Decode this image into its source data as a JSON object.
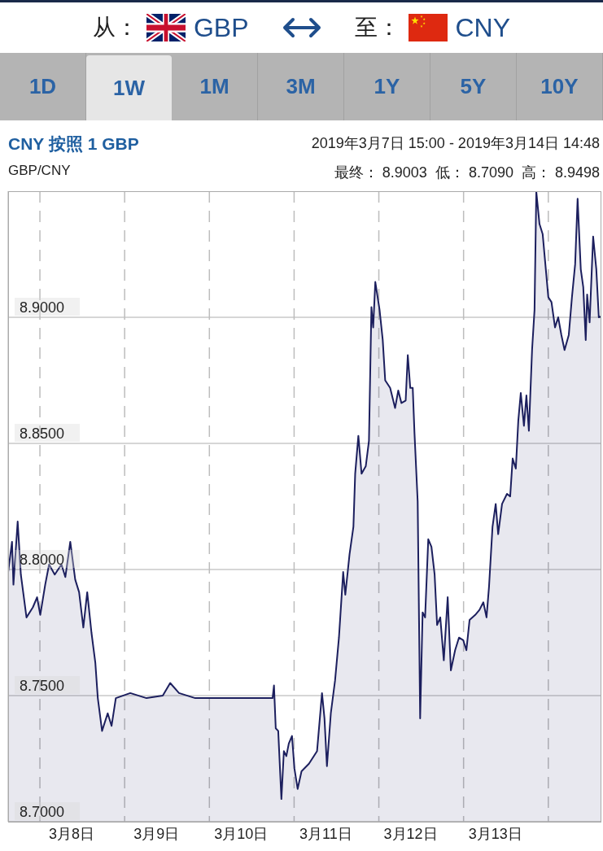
{
  "chart_data": {
    "type": "area",
    "title": "CNY 按照 1 GBP",
    "subtitle": "GBP/CNY",
    "annotations": [
      "从：",
      "GBP",
      "至：",
      "CNY",
      "1D",
      "1W",
      "1M",
      "3M",
      "1Y",
      "5Y",
      "10Y",
      "2019年3月7日 15:00 - 2019年3月14日 14:48",
      "最终： 8.9003  低： 8.7090  高： 8.9498"
    ],
    "x": [
      "2019-03-07T15:00",
      "2019-03-07T16:06",
      "2019-03-07T16:30",
      "2019-03-07T17:42",
      "2019-03-07T18:36",
      "2019-03-07T20:12",
      "2019-03-07T22:00",
      "2019-03-07T23:12",
      "2019-03-08T00:06",
      "2019-03-08T01:30",
      "2019-03-08T02:36",
      "2019-03-08T04:12",
      "2019-03-08T06:06",
      "2019-03-08T07:12",
      "2019-03-08T08:36",
      "2019-03-08T10:00",
      "2019-03-08T11:06",
      "2019-03-08T12:18",
      "2019-03-08T13:24",
      "2019-03-08T14:36",
      "2019-03-08T15:42",
      "2019-03-08T16:24",
      "2019-03-08T17:36",
      "2019-03-08T19:12",
      "2019-03-08T20:18",
      "2019-03-08T21:30",
      "2019-03-09T01:36",
      "2019-03-09T06:12",
      "2019-03-09T10:48",
      "2019-03-09T12:54",
      "2019-03-09T15:24",
      "2019-03-09T20:00",
      "2019-03-10T17:54",
      "2019-03-10T18:18",
      "2019-03-10T18:48",
      "2019-03-10T19:30",
      "2019-03-10T20:24",
      "2019-03-10T21:06",
      "2019-03-10T21:48",
      "2019-03-10T22:30",
      "2019-03-10T23:24",
      "2019-03-11T00:06",
      "2019-03-11T01:00",
      "2019-03-11T02:06",
      "2019-03-11T04:12",
      "2019-03-11T06:30",
      "2019-03-11T07:54",
      "2019-03-11T08:36",
      "2019-03-11T09:18",
      "2019-03-11T10:24",
      "2019-03-11T11:36",
      "2019-03-11T12:42",
      "2019-03-11T13:54",
      "2019-03-11T14:30",
      "2019-03-11T15:42",
      "2019-03-11T16:48",
      "2019-03-11T17:18",
      "2019-03-11T18:12",
      "2019-03-11T19:06",
      "2019-03-11T20:18",
      "2019-03-11T21:12",
      "2019-03-11T21:54",
      "2019-03-11T22:24",
      "2019-03-11T23:00",
      "2019-03-12T00:12",
      "2019-03-12T01:06",
      "2019-03-12T01:48",
      "2019-03-12T03:12",
      "2019-03-12T04:36",
      "2019-03-12T05:30",
      "2019-03-12T06:24",
      "2019-03-12T07:36",
      "2019-03-12T08:12",
      "2019-03-12T08:54",
      "2019-03-12T09:36",
      "2019-03-12T10:06",
      "2019-03-12T11:00",
      "2019-03-12T11:42",
      "2019-03-12T12:24",
      "2019-03-12T13:06",
      "2019-03-12T14:00",
      "2019-03-12T14:54",
      "2019-03-12T15:48",
      "2019-03-12T16:30",
      "2019-03-12T17:24",
      "2019-03-12T18:24",
      "2019-03-12T19:30",
      "2019-03-12T20:24",
      "2019-03-12T21:36",
      "2019-03-12T22:42",
      "2019-03-12T23:54",
      "2019-03-13T00:48",
      "2019-03-13T01:42",
      "2019-03-13T03:18",
      "2019-03-13T04:30",
      "2019-03-13T05:36",
      "2019-03-13T06:30",
      "2019-03-13T07:12",
      "2019-03-13T08:12",
      "2019-03-13T09:06",
      "2019-03-13T09:48",
      "2019-03-13T10:54",
      "2019-03-13T12:18",
      "2019-03-13T13:12",
      "2019-03-13T13:54",
      "2019-03-13T14:48",
      "2019-03-13T15:30",
      "2019-03-13T16:12",
      "2019-03-13T17:06",
      "2019-03-13T17:48",
      "2019-03-13T18:30",
      "2019-03-13T19:24",
      "2019-03-13T20:06",
      "2019-03-13T20:36",
      "2019-03-13T21:30",
      "2019-03-13T22:24",
      "2019-03-13T23:18",
      "2019-03-14T00:00",
      "2019-03-14T00:54",
      "2019-03-14T01:54",
      "2019-03-14T02:48",
      "2019-03-14T03:42",
      "2019-03-14T04:36",
      "2019-03-14T05:48",
      "2019-03-14T06:42",
      "2019-03-14T07:36",
      "2019-03-14T08:18",
      "2019-03-14T09:12",
      "2019-03-14T09:54",
      "2019-03-14T10:36",
      "2019-03-14T11:00",
      "2019-03-14T11:42",
      "2019-03-14T12:42",
      "2019-03-14T13:36",
      "2019-03-14T14:18",
      "2019-03-14T14:48"
    ],
    "values": [
      8.799,
      8.811,
      8.794,
      8.819,
      8.798,
      8.781,
      8.785,
      8.789,
      8.782,
      8.794,
      8.802,
      8.798,
      8.802,
      8.797,
      8.811,
      8.796,
      8.791,
      8.777,
      8.791,
      8.775,
      8.763,
      8.749,
      8.736,
      8.743,
      8.738,
      8.749,
      8.751,
      8.749,
      8.75,
      8.755,
      8.751,
      8.749,
      8.749,
      8.754,
      8.737,
      8.736,
      8.709,
      8.728,
      8.726,
      8.731,
      8.734,
      8.721,
      8.713,
      8.72,
      8.723,
      8.728,
      8.751,
      8.741,
      8.722,
      8.743,
      8.756,
      8.773,
      8.799,
      8.79,
      8.806,
      8.817,
      8.838,
      8.853,
      8.838,
      8.841,
      8.851,
      8.904,
      8.896,
      8.914,
      8.903,
      8.891,
      8.875,
      8.872,
      8.864,
      8.871,
      8.866,
      8.867,
      8.885,
      8.872,
      8.872,
      8.854,
      8.827,
      8.741,
      8.783,
      8.781,
      8.812,
      8.809,
      8.798,
      8.778,
      8.781,
      8.764,
      8.789,
      8.76,
      8.768,
      8.773,
      8.772,
      8.768,
      8.78,
      8.782,
      8.784,
      8.787,
      8.781,
      8.793,
      8.817,
      8.826,
      8.814,
      8.826,
      8.83,
      8.829,
      8.844,
      8.84,
      8.859,
      8.87,
      8.857,
      8.869,
      8.855,
      8.887,
      8.903,
      8.9498,
      8.937,
      8.933,
      8.919,
      8.908,
      8.906,
      8.896,
      8.9,
      8.893,
      8.887,
      8.893,
      8.908,
      8.921,
      8.947,
      8.919,
      8.912,
      8.891,
      8.909,
      8.898,
      8.932,
      8.919,
      8.9,
      8.9003
    ],
    "color": "#1c1f5e",
    "xlim": [
      "2019-03-07T15:00",
      "2019-03-14T14:48"
    ],
    "xticks": [
      {
        "value": "2019-03-08",
        "label": null
      },
      {
        "value": "2019-03-08T09:00",
        "label": "3月8日"
      },
      {
        "value": "2019-03-09",
        "label": null
      },
      {
        "value": "2019-03-09T09:00",
        "label": "3月9日"
      },
      {
        "value": "2019-03-10",
        "label": null
      },
      {
        "value": "2019-03-10T09:00",
        "label": "3月10日"
      },
      {
        "value": "2019-03-11",
        "label": null
      },
      {
        "value": "2019-03-11T09:00",
        "label": "3月11日"
      },
      {
        "value": "2019-03-12",
        "label": null
      },
      {
        "value": "2019-03-12T09:00",
        "label": "3月12日"
      },
      {
        "value": "2019-03-13",
        "label": null
      },
      {
        "value": "2019-03-13T09:00",
        "label": "3月13日"
      },
      {
        "value": "2019-03-14",
        "label": null
      }
    ],
    "ylim": [
      8.7,
      8.95
    ],
    "yticks": [
      {
        "value": 8.7,
        "label": "8.7000"
      },
      {
        "value": 8.75,
        "label": "8.7500"
      },
      {
        "value": 8.8,
        "label": "8.8000"
      },
      {
        "value": 8.85,
        "label": "8.8500"
      },
      {
        "value": 8.9,
        "label": "8.9000"
      }
    ],
    "grid": true,
    "line_style": "solid",
    "marker": "none"
  }
}
